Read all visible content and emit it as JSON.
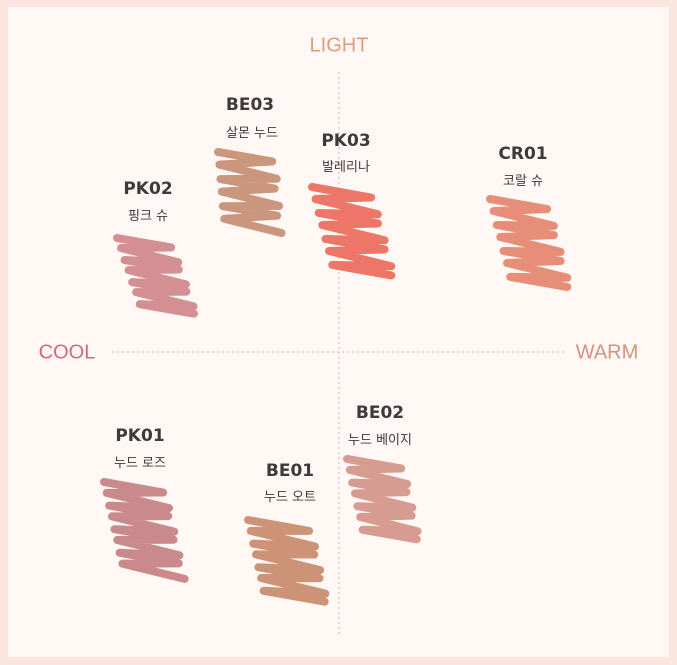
{
  "axes": {
    "top": {
      "label": "LIGHT",
      "color": "#e49a78"
    },
    "left": {
      "label": "COOL",
      "color": "#d26a80"
    },
    "right": {
      "label": "WARM",
      "color": "#d4937c"
    }
  },
  "swatches": [
    {
      "code": "BE03",
      "name": "살몬 누드",
      "color": "#c68d72"
    },
    {
      "code": "PK03",
      "name": "발레리나",
      "color": "#ec6a5c"
    },
    {
      "code": "CR01",
      "name": "코랄 슈",
      "color": "#e5846e"
    },
    {
      "code": "PK02",
      "name": "핑크 슈",
      "color": "#cf8588"
    },
    {
      "code": "BE02",
      "name": "누드 베이지",
      "color": "#d49488"
    },
    {
      "code": "PK01",
      "name": "누드 로즈",
      "color": "#c68082"
    },
    {
      "code": "BE01",
      "name": "누드 오트",
      "color": "#c98a6a"
    }
  ]
}
